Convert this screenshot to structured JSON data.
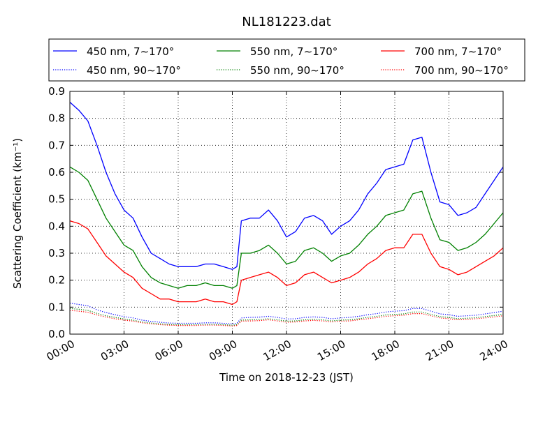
{
  "chart_data": {
    "type": "line",
    "title": "NL181223.dat",
    "xlabel": "Time on 2018-12-23 (JST)",
    "ylabel": "Scattering Coefficient (km⁻¹)",
    "xlim": [
      "00:00",
      "24:00"
    ],
    "ylim": [
      0,
      0.9
    ],
    "grid": true,
    "legend_position": "top",
    "x_ticks": [
      "00:00",
      "03:00",
      "06:00",
      "09:00",
      "12:00",
      "15:00",
      "18:00",
      "21:00",
      "24:00"
    ],
    "y_ticks": [
      "0.0",
      "0.1",
      "0.2",
      "0.3",
      "0.4",
      "0.5",
      "0.6",
      "0.7",
      "0.8",
      "0.9"
    ],
    "x": [
      "00:00",
      "00:30",
      "01:00",
      "01:30",
      "02:00",
      "02:30",
      "03:00",
      "03:30",
      "04:00",
      "04:30",
      "05:00",
      "05:30",
      "06:00",
      "06:30",
      "07:00",
      "07:30",
      "08:00",
      "08:30",
      "09:00",
      "09:15",
      "09:30",
      "10:00",
      "10:30",
      "11:00",
      "11:30",
      "12:00",
      "12:30",
      "13:00",
      "13:30",
      "14:00",
      "14:30",
      "15:00",
      "15:30",
      "16:00",
      "16:30",
      "17:00",
      "17:30",
      "18:00",
      "18:30",
      "19:00",
      "19:30",
      "20:00",
      "20:30",
      "21:00",
      "21:30",
      "22:00",
      "22:30",
      "23:00",
      "23:30",
      "24:00"
    ],
    "series": [
      {
        "name": "450 nm, 7∼170°",
        "color": "#0000ff",
        "style": "solid",
        "values": [
          0.86,
          0.83,
          0.79,
          0.7,
          0.6,
          0.52,
          0.46,
          0.43,
          0.36,
          0.3,
          0.28,
          0.26,
          0.25,
          0.25,
          0.25,
          0.26,
          0.26,
          0.25,
          0.24,
          0.25,
          0.42,
          0.43,
          0.43,
          0.46,
          0.42,
          0.36,
          0.38,
          0.43,
          0.44,
          0.42,
          0.37,
          0.4,
          0.42,
          0.46,
          0.52,
          0.56,
          0.61,
          0.62,
          0.63,
          0.72,
          0.73,
          0.6,
          0.49,
          0.48,
          0.44,
          0.45,
          0.47,
          0.52,
          0.57,
          0.62
        ]
      },
      {
        "name": "550 nm, 7∼170°",
        "color": "#008000",
        "style": "solid",
        "values": [
          0.62,
          0.6,
          0.57,
          0.5,
          0.43,
          0.38,
          0.33,
          0.31,
          0.25,
          0.21,
          0.19,
          0.18,
          0.17,
          0.18,
          0.18,
          0.19,
          0.18,
          0.18,
          0.17,
          0.18,
          0.3,
          0.3,
          0.31,
          0.33,
          0.3,
          0.26,
          0.27,
          0.31,
          0.32,
          0.3,
          0.27,
          0.29,
          0.3,
          0.33,
          0.37,
          0.4,
          0.44,
          0.45,
          0.46,
          0.52,
          0.53,
          0.43,
          0.35,
          0.34,
          0.31,
          0.32,
          0.34,
          0.37,
          0.41,
          0.45
        ]
      },
      {
        "name": "700 nm, 7∼170°",
        "color": "#ff0000",
        "style": "solid",
        "values": [
          0.42,
          0.41,
          0.39,
          0.34,
          0.29,
          0.26,
          0.23,
          0.21,
          0.17,
          0.15,
          0.13,
          0.13,
          0.12,
          0.12,
          0.12,
          0.13,
          0.12,
          0.12,
          0.11,
          0.12,
          0.2,
          0.21,
          0.22,
          0.23,
          0.21,
          0.18,
          0.19,
          0.22,
          0.23,
          0.21,
          0.19,
          0.2,
          0.21,
          0.23,
          0.26,
          0.28,
          0.31,
          0.32,
          0.32,
          0.37,
          0.37,
          0.3,
          0.25,
          0.24,
          0.22,
          0.23,
          0.25,
          0.27,
          0.29,
          0.32
        ]
      },
      {
        "name": "450 nm, 90∼170°",
        "color": "#0000ff",
        "style": "dotted",
        "values": [
          0.115,
          0.11,
          0.105,
          0.09,
          0.08,
          0.072,
          0.065,
          0.06,
          0.052,
          0.047,
          0.044,
          0.041,
          0.04,
          0.04,
          0.04,
          0.042,
          0.042,
          0.04,
          0.038,
          0.04,
          0.06,
          0.062,
          0.063,
          0.066,
          0.062,
          0.056,
          0.057,
          0.062,
          0.064,
          0.062,
          0.057,
          0.06,
          0.062,
          0.066,
          0.072,
          0.076,
          0.082,
          0.085,
          0.087,
          0.095,
          0.095,
          0.085,
          0.075,
          0.072,
          0.066,
          0.068,
          0.07,
          0.075,
          0.08,
          0.085
        ]
      },
      {
        "name": "550 nm, 90∼170°",
        "color": "#008000",
        "style": "dotted",
        "values": [
          0.095,
          0.092,
          0.088,
          0.077,
          0.068,
          0.062,
          0.056,
          0.052,
          0.045,
          0.041,
          0.038,
          0.036,
          0.035,
          0.035,
          0.035,
          0.036,
          0.036,
          0.035,
          0.033,
          0.035,
          0.052,
          0.053,
          0.054,
          0.057,
          0.053,
          0.048,
          0.049,
          0.053,
          0.055,
          0.053,
          0.049,
          0.052,
          0.053,
          0.057,
          0.062,
          0.066,
          0.071,
          0.073,
          0.075,
          0.082,
          0.082,
          0.073,
          0.065,
          0.062,
          0.057,
          0.059,
          0.061,
          0.065,
          0.069,
          0.073
        ]
      },
      {
        "name": "700 nm, 90∼170°",
        "color": "#ff0000",
        "style": "dotted",
        "values": [
          0.088,
          0.085,
          0.081,
          0.071,
          0.063,
          0.057,
          0.052,
          0.048,
          0.042,
          0.038,
          0.035,
          0.033,
          0.032,
          0.032,
          0.032,
          0.033,
          0.033,
          0.032,
          0.03,
          0.032,
          0.048,
          0.049,
          0.05,
          0.053,
          0.049,
          0.044,
          0.045,
          0.049,
          0.051,
          0.049,
          0.045,
          0.048,
          0.049,
          0.053,
          0.057,
          0.061,
          0.066,
          0.068,
          0.07,
          0.076,
          0.076,
          0.068,
          0.06,
          0.057,
          0.053,
          0.055,
          0.057,
          0.06,
          0.064,
          0.068
        ]
      }
    ]
  }
}
